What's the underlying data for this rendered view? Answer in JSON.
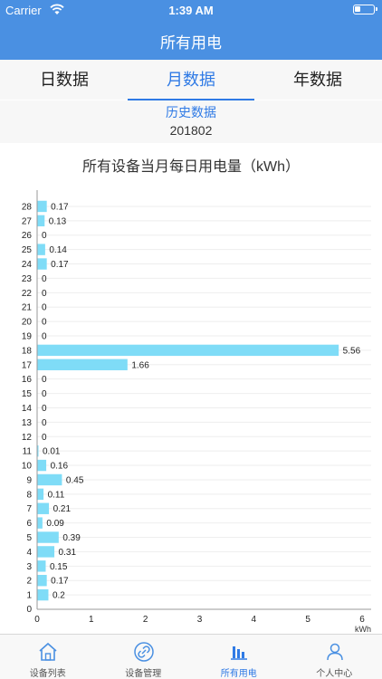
{
  "status_bar": {
    "carrier": "Carrier",
    "time": "1:39 AM"
  },
  "nav": {
    "title": "所有用电"
  },
  "tabs": [
    {
      "label": "日数据"
    },
    {
      "label": "月数据"
    },
    {
      "label": "年数据"
    }
  ],
  "history": {
    "link": "历史数据",
    "period": "201802"
  },
  "chart_title": "所有设备当月每日用电量（kWh）",
  "colors": {
    "accent": "#2f7ae5",
    "nav_bg": "#4a90e2",
    "bar": "#7fdcf7"
  },
  "chart_data": {
    "type": "bar",
    "orientation": "horizontal",
    "title": "所有设备当月每日用电量（kWh）",
    "xlabel": "kWh",
    "ylabel": "",
    "xlim": [
      0,
      6
    ],
    "x_ticks": [
      "0",
      "1",
      "2",
      "3",
      "4",
      "5",
      "6"
    ],
    "y_axis_zero_label": "0",
    "categories": [
      "1",
      "2",
      "3",
      "4",
      "5",
      "6",
      "7",
      "8",
      "9",
      "10",
      "11",
      "12",
      "13",
      "14",
      "15",
      "16",
      "17",
      "18",
      "19",
      "20",
      "21",
      "22",
      "23",
      "24",
      "25",
      "26",
      "27",
      "28"
    ],
    "values": [
      0.2,
      0.17,
      0.15,
      0.31,
      0.39,
      0.09,
      0.21,
      0.11,
      0.45,
      0.16,
      0.01,
      0,
      0,
      0,
      0,
      0,
      1.66,
      5.56,
      0,
      0,
      0,
      0,
      0,
      0.17,
      0.14,
      0,
      0.13,
      0.17
    ],
    "value_labels": [
      "0.2",
      "0.17",
      "0.15",
      "0.31",
      "0.39",
      "0.09",
      "0.21",
      "0.11",
      "0.45",
      "0.16",
      "0.01",
      "0",
      "0",
      "0",
      "0",
      "0",
      "1.66",
      "5.56",
      "0",
      "0",
      "0",
      "0",
      "0",
      "0.17",
      "0.14",
      "0",
      "0.13",
      "0.17"
    ],
    "grid": true
  },
  "tab_bar": {
    "items": [
      {
        "label": "设备列表",
        "icon": "home-icon"
      },
      {
        "label": "设备管理",
        "icon": "link-icon"
      },
      {
        "label": "所有用电",
        "icon": "bar-chart-icon"
      },
      {
        "label": "个人中心",
        "icon": "person-icon"
      }
    ]
  }
}
